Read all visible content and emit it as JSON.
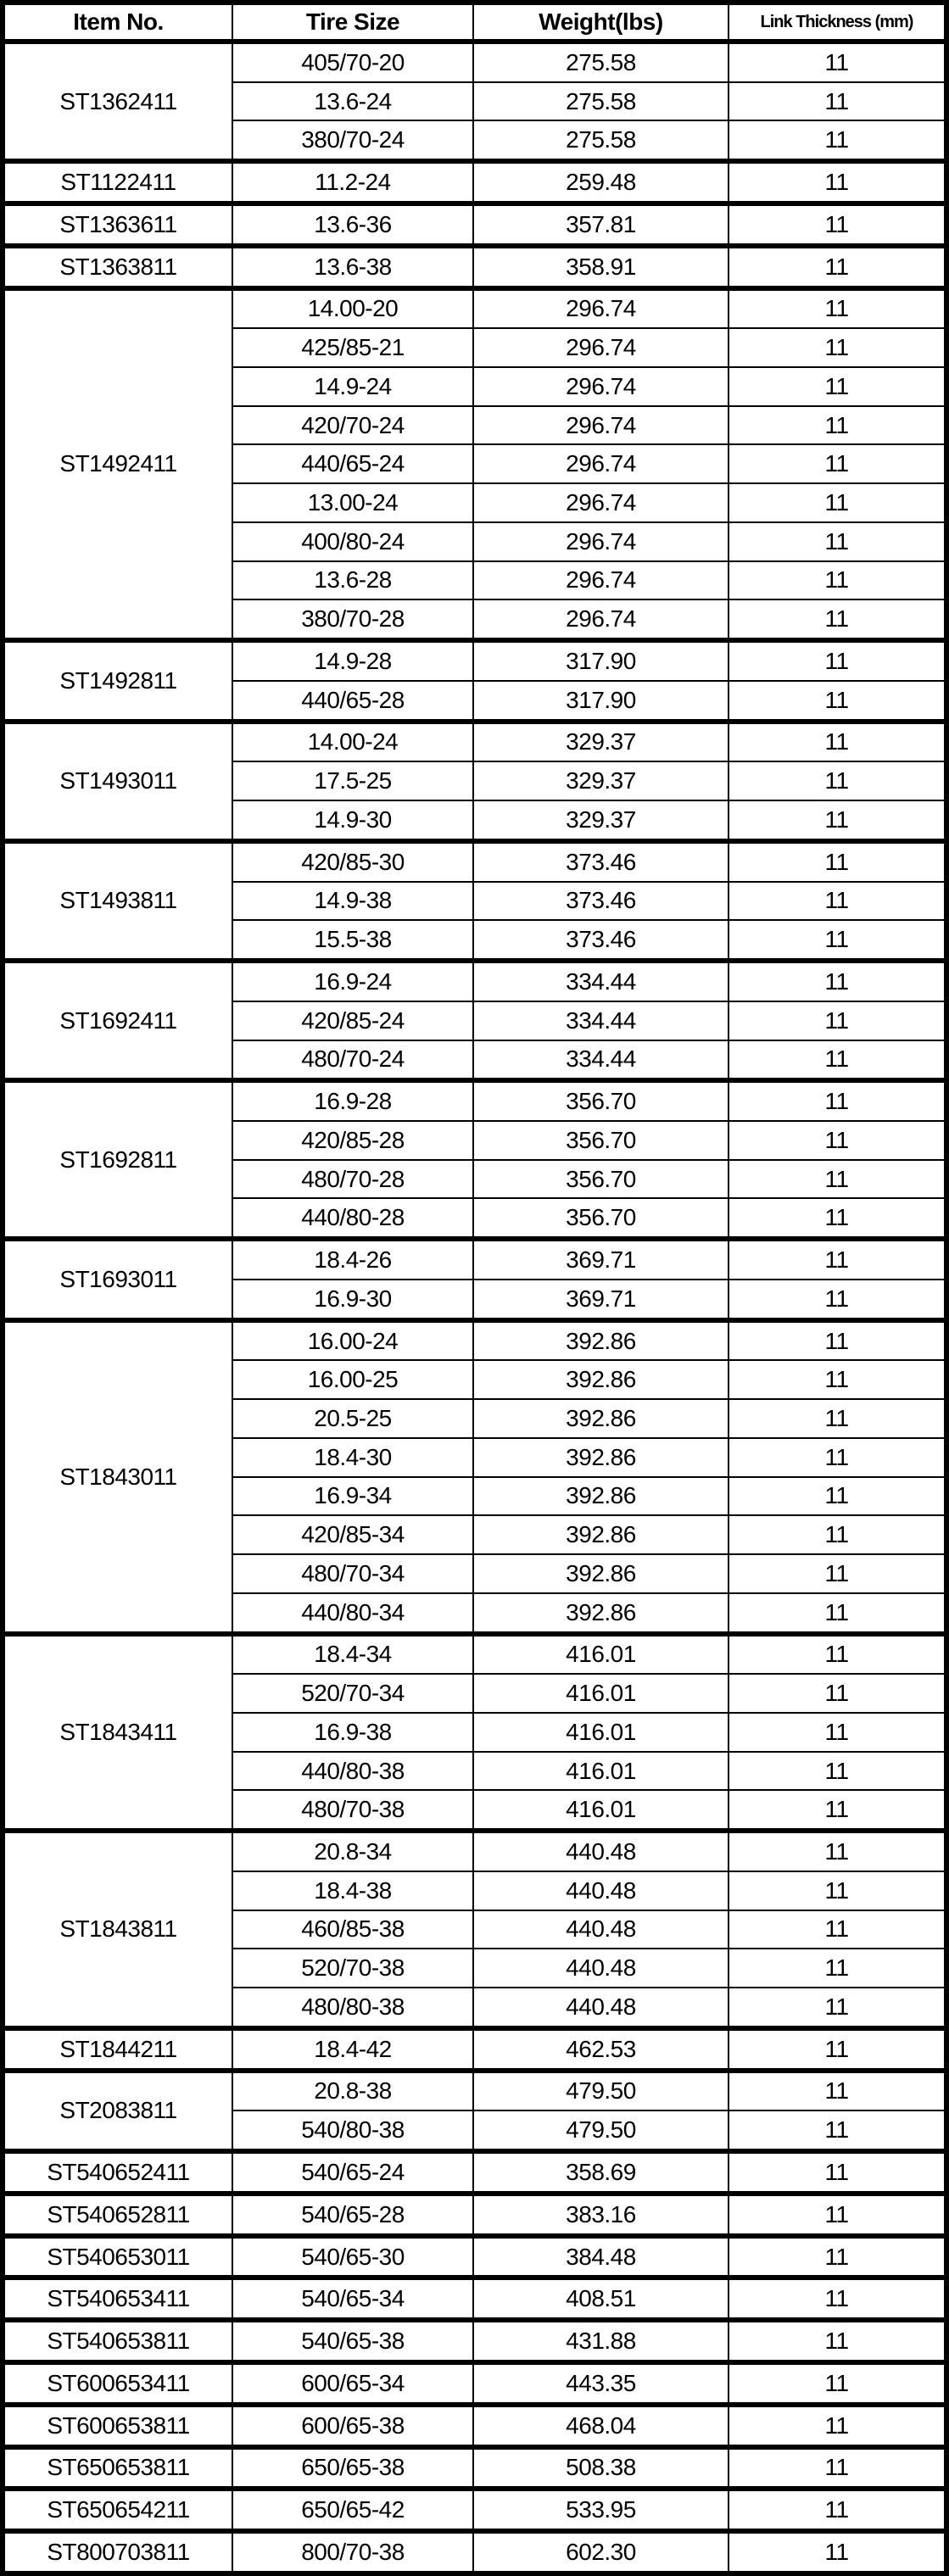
{
  "headers": [
    "Item No.",
    "Tire Size",
    "Weight(lbs)",
    "Link Thickness (mm)"
  ],
  "groups": [
    {
      "item": "ST1362411",
      "rows": [
        [
          "405/70-20",
          "275.58",
          "11"
        ],
        [
          "13.6-24",
          "275.58",
          "11"
        ],
        [
          "380/70-24",
          "275.58",
          "11"
        ]
      ]
    },
    {
      "item": "ST1122411",
      "rows": [
        [
          "11.2-24",
          "259.48",
          "11"
        ]
      ]
    },
    {
      "item": "ST1363611",
      "rows": [
        [
          "13.6-36",
          "357.81",
          "11"
        ]
      ]
    },
    {
      "item": "ST1363811",
      "rows": [
        [
          "13.6-38",
          "358.91",
          "11"
        ]
      ]
    },
    {
      "item": "ST1492411",
      "rows": [
        [
          "14.00-20",
          "296.74",
          "11"
        ],
        [
          "425/85-21",
          "296.74",
          "11"
        ],
        [
          "14.9-24",
          "296.74",
          "11"
        ],
        [
          "420/70-24",
          "296.74",
          "11"
        ],
        [
          "440/65-24",
          "296.74",
          "11"
        ],
        [
          "13.00-24",
          "296.74",
          "11"
        ],
        [
          "400/80-24",
          "296.74",
          "11"
        ],
        [
          "13.6-28",
          "296.74",
          "11"
        ],
        [
          "380/70-28",
          "296.74",
          "11"
        ]
      ]
    },
    {
      "item": "ST1492811",
      "rows": [
        [
          "14.9-28",
          "317.90",
          "11"
        ],
        [
          "440/65-28",
          "317.90",
          "11"
        ]
      ]
    },
    {
      "item": "ST1493011",
      "rows": [
        [
          "14.00-24",
          "329.37",
          "11"
        ],
        [
          "17.5-25",
          "329.37",
          "11"
        ],
        [
          "14.9-30",
          "329.37",
          "11"
        ]
      ]
    },
    {
      "item": "ST1493811",
      "rows": [
        [
          "420/85-30",
          "373.46",
          "11"
        ],
        [
          "14.9-38",
          "373.46",
          "11"
        ],
        [
          "15.5-38",
          "373.46",
          "11"
        ]
      ]
    },
    {
      "item": "ST1692411",
      "rows": [
        [
          "16.9-24",
          "334.44",
          "11"
        ],
        [
          "420/85-24",
          "334.44",
          "11"
        ],
        [
          "480/70-24",
          "334.44",
          "11"
        ]
      ]
    },
    {
      "item": "ST1692811",
      "rows": [
        [
          "16.9-28",
          "356.70",
          "11"
        ],
        [
          "420/85-28",
          "356.70",
          "11"
        ],
        [
          "480/70-28",
          "356.70",
          "11"
        ],
        [
          "440/80-28",
          "356.70",
          "11"
        ]
      ]
    },
    {
      "item": "ST1693011",
      "rows": [
        [
          "18.4-26",
          "369.71",
          "11"
        ],
        [
          "16.9-30",
          "369.71",
          "11"
        ]
      ]
    },
    {
      "item": "ST1843011",
      "rows": [
        [
          "16.00-24",
          "392.86",
          "11"
        ],
        [
          "16.00-25",
          "392.86",
          "11"
        ],
        [
          "20.5-25",
          "392.86",
          "11"
        ],
        [
          "18.4-30",
          "392.86",
          "11"
        ],
        [
          "16.9-34",
          "392.86",
          "11"
        ],
        [
          "420/85-34",
          "392.86",
          "11"
        ],
        [
          "480/70-34",
          "392.86",
          "11"
        ],
        [
          "440/80-34",
          "392.86",
          "11"
        ]
      ]
    },
    {
      "item": "ST1843411",
      "rows": [
        [
          "18.4-34",
          "416.01",
          "11"
        ],
        [
          "520/70-34",
          "416.01",
          "11"
        ],
        [
          "16.9-38",
          "416.01",
          "11"
        ],
        [
          "440/80-38",
          "416.01",
          "11"
        ],
        [
          "480/70-38",
          "416.01",
          "11"
        ]
      ]
    },
    {
      "item": "ST1843811",
      "rows": [
        [
          "20.8-34",
          "440.48",
          "11"
        ],
        [
          "18.4-38",
          "440.48",
          "11"
        ],
        [
          "460/85-38",
          "440.48",
          "11"
        ],
        [
          "520/70-38",
          "440.48",
          "11"
        ],
        [
          "480/80-38",
          "440.48",
          "11"
        ]
      ]
    },
    {
      "item": "ST1844211",
      "rows": [
        [
          "18.4-42",
          "462.53",
          "11"
        ]
      ]
    },
    {
      "item": "ST2083811",
      "rows": [
        [
          "20.8-38",
          "479.50",
          "11"
        ],
        [
          "540/80-38",
          "479.50",
          "11"
        ]
      ]
    },
    {
      "item": "ST540652411",
      "rows": [
        [
          "540/65-24",
          "358.69",
          "11"
        ]
      ]
    },
    {
      "item": "ST540652811",
      "rows": [
        [
          "540/65-28",
          "383.16",
          "11"
        ]
      ]
    },
    {
      "item": "ST540653011",
      "rows": [
        [
          "540/65-30",
          "384.48",
          "11"
        ]
      ]
    },
    {
      "item": "ST540653411",
      "rows": [
        [
          "540/65-34",
          "408.51",
          "11"
        ]
      ]
    },
    {
      "item": "ST540653811",
      "rows": [
        [
          "540/65-38",
          "431.88",
          "11"
        ]
      ]
    },
    {
      "item": "ST600653411",
      "rows": [
        [
          "600/65-34",
          "443.35",
          "11"
        ]
      ]
    },
    {
      "item": "ST600653811",
      "rows": [
        [
          "600/65-38",
          "468.04",
          "11"
        ]
      ]
    },
    {
      "item": "ST650653811",
      "rows": [
        [
          "650/65-38",
          "508.38",
          "11"
        ]
      ]
    },
    {
      "item": "ST650654211",
      "rows": [
        [
          "650/65-42",
          "533.95",
          "11"
        ]
      ]
    },
    {
      "item": "ST800703811",
      "rows": [
        [
          "800/70-38",
          "602.30",
          "11"
        ]
      ]
    }
  ]
}
